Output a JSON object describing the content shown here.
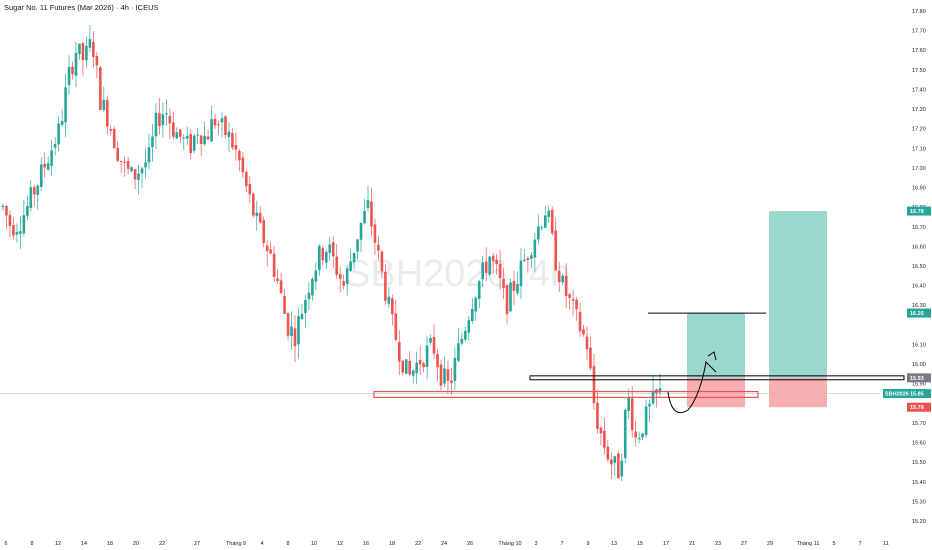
{
  "header": {
    "title": "Sugar No. 11 Futures (Mar 2026) · 4h · ICEUS"
  },
  "watermark": "SBH2026, 4h",
  "colors": {
    "up": "#26a69a",
    "down": "#ef5350",
    "tp": "#8fd3c7",
    "sl": "#f5a5a9",
    "line": "#000000",
    "zone": "#ef5350",
    "grey": "#787b86",
    "last": "#26a69a"
  },
  "chart_data": {
    "type": "candlestick",
    "title": "Sugar No. 11 Futures (Mar 2026) · 4h · ICEUS",
    "symbol": "SBH2026",
    "timeframe": "4h",
    "exchange": "ICEUS",
    "ylim": [
      15.18,
      17.87
    ],
    "y_ticks": [
      "17.80",
      "17.70",
      "17.60",
      "17.50",
      "17.40",
      "17.30",
      "17.20",
      "17.10",
      "17.00",
      "16.90",
      "16.80",
      "16.70",
      "16.60",
      "16.50",
      "16.40",
      "16.30",
      "16.10",
      "16.00",
      "15.90",
      "15.70",
      "15.60",
      "15.50",
      "15.40",
      "15.30",
      "15.20"
    ],
    "x_ticks": [
      "6",
      "8",
      "12",
      "14",
      "18",
      "20",
      "22",
      "27",
      "Tháng 9",
      "4",
      "8",
      "10",
      "12",
      "16",
      "18",
      "22",
      "24",
      "26",
      "Tháng 10",
      "3",
      "7",
      "9",
      "13",
      "15",
      "17",
      "21",
      "23",
      "27",
      "29",
      "Tháng 11",
      "5",
      "7",
      "11"
    ],
    "price_labels": [
      {
        "label": "16.78",
        "value": 16.78,
        "kind": "target"
      },
      {
        "label": "16.26",
        "value": 16.26,
        "kind": "target"
      },
      {
        "label": "15.93",
        "value": 15.93,
        "kind": "entry"
      },
      {
        "label": "15.85",
        "value": 15.85,
        "kind": "last",
        "symbol": "SBH2026"
      },
      {
        "label": "15.78",
        "value": 15.78,
        "kind": "stop"
      }
    ],
    "close_path": [
      16.8,
      16.7,
      16.72,
      16.8,
      16.9,
      17.0,
      17.1,
      17.2,
      17.45,
      17.6,
      17.55,
      17.65,
      17.35,
      17.25,
      17.1,
      17.0,
      16.95,
      17.0,
      17.05,
      17.25,
      17.3,
      17.2,
      17.15,
      17.1,
      17.2,
      17.15,
      17.25,
      17.2,
      17.15,
      17.05,
      16.9,
      16.75,
      16.65,
      16.55,
      16.4,
      16.2,
      16.15,
      16.3,
      16.45,
      16.55,
      16.6,
      16.5,
      16.4,
      16.55,
      16.7,
      16.8,
      16.6,
      16.4,
      16.2,
      16.05,
      15.93,
      16.0,
      16.05,
      16.1,
      15.95,
      15.88,
      16.05,
      16.2,
      16.35,
      16.45,
      16.55,
      16.45,
      16.3,
      16.4,
      16.5,
      16.6,
      16.7,
      16.8,
      16.55,
      16.4,
      16.3,
      16.2,
      16.1,
      15.75,
      15.6,
      15.5,
      15.45,
      15.85,
      15.62,
      15.7,
      15.8,
      15.85
    ],
    "annotations": [
      {
        "type": "long_position",
        "entry": 15.93,
        "target": 16.26,
        "stop": 15.78
      },
      {
        "type": "long_position",
        "entry": 15.93,
        "target": 16.78,
        "stop": 15.78
      },
      {
        "type": "horizontal_line",
        "value": 16.26
      },
      {
        "type": "horizontal_zone",
        "value_low": 15.83,
        "value_high": 15.86
      },
      {
        "type": "horizontal_band",
        "value_low": 15.92,
        "value_high": 15.94
      },
      {
        "type": "projection_path",
        "shape": "dip-then-rise"
      }
    ],
    "grid": false,
    "legend": "none"
  }
}
